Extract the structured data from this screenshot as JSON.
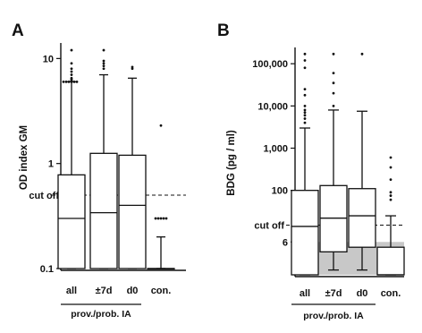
{
  "chart_data": [
    {
      "type": "box",
      "panel": "A",
      "ylabel": "OD index GM",
      "yscale": "log",
      "ylim": [
        0.1,
        13
      ],
      "yticks": [
        {
          "value": 0.1,
          "label": "0.1"
        },
        {
          "value": 1,
          "label": "1"
        },
        {
          "value": 10,
          "label": "10"
        }
      ],
      "cutoff": {
        "value": 0.5,
        "label": "cut off"
      },
      "categories": [
        "all",
        "±7d",
        "d0",
        "con."
      ],
      "group_label": {
        "text": "prov./prob. IA",
        "span": [
          0,
          2
        ]
      },
      "boxes": [
        {
          "whisker_low": 0.1,
          "q1": 0.1,
          "median": 0.3,
          "q3": 0.78,
          "whisker_high": 6.0,
          "outliers": [
            6.0,
            6.0,
            6.0,
            6.0,
            6.0,
            6.0,
            6.1,
            6.3,
            6.5,
            7.0,
            7.5,
            8.0,
            9.0,
            12.0
          ]
        },
        {
          "whisker_low": 0.1,
          "q1": 0.1,
          "median": 0.34,
          "q3": 1.25,
          "whisker_high": 7.0,
          "outliers": [
            8.0,
            8.5,
            9.0,
            9.5,
            12.0
          ]
        },
        {
          "whisker_low": 0.1,
          "q1": 0.1,
          "median": 0.4,
          "q3": 1.2,
          "whisker_high": 6.5,
          "outliers": [
            8.0,
            8.3
          ]
        },
        {
          "whisker_low": 0.1,
          "q1": 0.1,
          "median": 0.1,
          "q3": 0.1,
          "whisker_high": 0.2,
          "outliers": [
            0.3,
            0.3,
            0.3,
            0.3,
            0.3,
            2.3
          ]
        }
      ]
    },
    {
      "type": "box",
      "panel": "B",
      "ylabel": "BDG (pg / ml)",
      "yscale": "log",
      "ylim": [
        1,
        200000
      ],
      "yticks": [
        {
          "value": 6,
          "label": "6"
        },
        {
          "value": 100,
          "label": "100"
        },
        {
          "value": 1000,
          "label": "1,000"
        },
        {
          "value": 10000,
          "label": "10,000"
        },
        {
          "value": 100000,
          "label": "100,000"
        }
      ],
      "cutoff": {
        "value": 15,
        "label": "cut off"
      },
      "shaded_below": 6,
      "categories": [
        "all",
        "±7d",
        "d0",
        "con."
      ],
      "group_label": {
        "text": "prov./prob. IA",
        "span": [
          0,
          2
        ]
      },
      "boxes": [
        {
          "whisker_low": 1,
          "q1": 1,
          "median": 14,
          "q3": 100,
          "whisker_high": 3000,
          "outliers": [
            4000,
            5000,
            6000,
            7000,
            8000,
            10000,
            18000,
            25000,
            80000,
            120000,
            170000
          ]
        },
        {
          "whisker_low": 1.3,
          "q1": 3.5,
          "median": 22,
          "q3": 130,
          "whisker_high": 8000,
          "outliers": [
            10000,
            20000,
            35000,
            60000,
            170000
          ]
        },
        {
          "whisker_low": 1.3,
          "q1": 4.5,
          "median": 25,
          "q3": 110,
          "whisker_high": 7500,
          "outliers": [
            170000
          ]
        },
        {
          "whisker_low": 1,
          "q1": 1,
          "median": 1,
          "q3": 4.5,
          "whisker_high": 25,
          "outliers": [
            60,
            75,
            90,
            180,
            350,
            600
          ]
        }
      ]
    }
  ]
}
